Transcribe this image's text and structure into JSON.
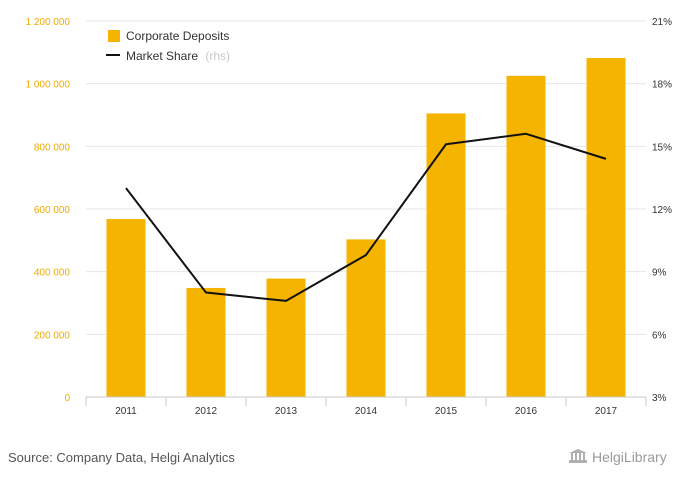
{
  "chart_data": {
    "type": "bar",
    "categories": [
      "2011",
      "2012",
      "2013",
      "2014",
      "2015",
      "2016",
      "2017"
    ],
    "series": [
      {
        "name": "Corporate Deposits",
        "type": "bar",
        "axis": "left",
        "values": [
          568000,
          348000,
          378000,
          503000,
          905000,
          1025000,
          1082000
        ],
        "color": "#f5b400"
      },
      {
        "name": "Market Share",
        "name_suffix": "(rhs)",
        "type": "line",
        "axis": "right",
        "values": [
          13.0,
          8.0,
          7.6,
          9.8,
          15.1,
          15.6,
          14.4
        ],
        "color": "#111111"
      }
    ],
    "ylim": [
      0,
      1200000
    ],
    "y_ticks": [
      "0",
      "200 000",
      "400 000",
      "600 000",
      "800 000",
      "1 000 000",
      "1 200 000"
    ],
    "y2lim": [
      3,
      21
    ],
    "y2_ticks": [
      "3%",
      "6%",
      "9%",
      "12%",
      "15%",
      "18%",
      "21%"
    ],
    "grid": true,
    "legend_position": "top-left"
  },
  "source_text": "Source: Company Data, Helgi Analytics",
  "logo_text": "HelgiLibrary"
}
